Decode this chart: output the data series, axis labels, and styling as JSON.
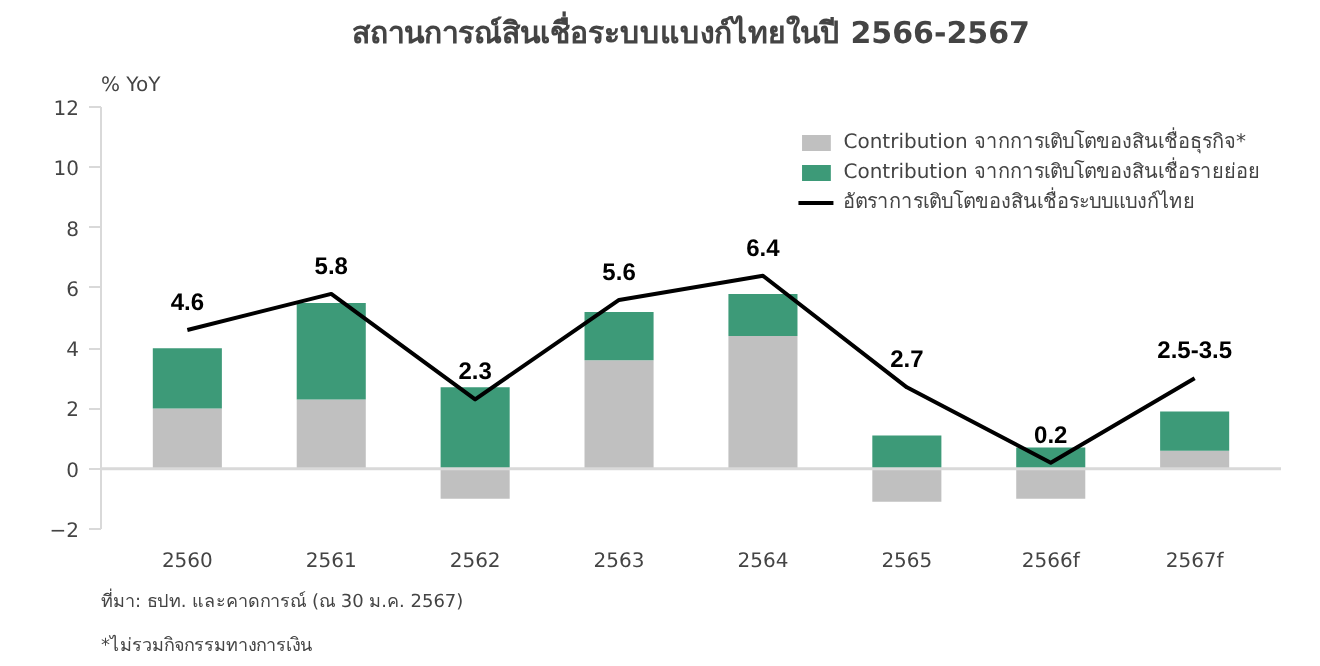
{
  "chart_data": {
    "type": "bar",
    "title": "สถานการณ์สินเชื่อระบบแบงก์ไทยในปี 2566-2567",
    "ylabel": "% YoY",
    "categories": [
      "2560",
      "2561",
      "2562",
      "2563",
      "2564",
      "2565",
      "2566f",
      "2567f"
    ],
    "stacked": true,
    "series": [
      {
        "name": "Contribution จากการเติบโตของสินเชื่อธุรกิจ*",
        "color": "#c0c0c0",
        "values": [
          2.0,
          2.3,
          -1.0,
          3.6,
          4.4,
          -1.1,
          -1.0,
          0.6
        ]
      },
      {
        "name": "Contribution จากการเติบโตของสินเชื่อรายย่อย",
        "color": "#3d9a78",
        "values": [
          2.0,
          3.2,
          2.7,
          1.6,
          1.4,
          1.1,
          0.7,
          1.3
        ]
      },
      {
        "name": "อัตราการเติบโตของสินเชื่อระบบแบงก์ไทย",
        "type": "line",
        "color": "#000000",
        "values": [
          4.6,
          5.8,
          2.3,
          5.6,
          6.4,
          2.7,
          0.2,
          3.0
        ],
        "value_labels": [
          "4.6",
          "5.8",
          "2.3",
          "5.6",
          "6.4",
          "2.7",
          "0.2",
          "2.5-3.5"
        ]
      }
    ],
    "ylim": [
      -2,
      12
    ],
    "yticks": [
      -2,
      0,
      2,
      4,
      6,
      8,
      10,
      12
    ],
    "ref_lines": [
      {
        "axis": "y",
        "value": 0,
        "color": "#d9d9d9"
      }
    ],
    "grid": false,
    "legend": "top right",
    "annotations": [
      "ที่มา: ธปท. และคาดการณ์ (ณ 30 ม.ค. 2567)",
      "*ไม่รวมกิจกรรมทางการเงิน"
    ]
  }
}
